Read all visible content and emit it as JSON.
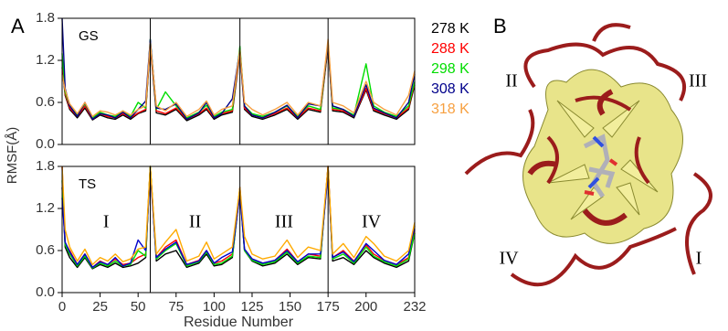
{
  "panel_labels": [
    "A",
    "B"
  ],
  "chart_data": [
    {
      "type": "line",
      "label": "GS",
      "ylabel": "RMSF(Å)",
      "x": [
        0,
        2,
        5,
        10,
        15,
        20,
        25,
        30,
        35,
        40,
        45,
        50,
        55,
        58,
        62,
        68,
        75,
        82,
        90,
        95,
        100,
        105,
        112,
        117,
        120,
        125,
        132,
        140,
        148,
        155,
        162,
        170,
        175,
        178,
        185,
        192,
        200,
        205,
        212,
        220,
        228,
        232
      ],
      "xlim": [
        0,
        232
      ],
      "ylim": [
        0,
        1.8
      ],
      "yticks": [
        {
          "value": 0,
          "label": "0.0"
        },
        0.6,
        1.2,
        1.8
      ],
      "boundaries": [
        58,
        117,
        175
      ],
      "series": [
        {
          "name": "278 K",
          "color": "#000000",
          "values": [
            1.1,
            0.7,
            0.5,
            0.38,
            0.52,
            0.35,
            0.42,
            0.38,
            0.36,
            0.42,
            0.36,
            0.44,
            0.48,
            1.4,
            0.45,
            0.42,
            0.5,
            0.34,
            0.42,
            0.5,
            0.36,
            0.42,
            0.46,
            1.3,
            0.5,
            0.4,
            0.36,
            0.42,
            0.5,
            0.36,
            0.5,
            0.46,
            1.4,
            0.48,
            0.46,
            0.38,
            0.78,
            0.48,
            0.42,
            0.36,
            0.5,
            0.85
          ]
        },
        {
          "name": "288 K",
          "color": "#ff0000",
          "values": [
            1.2,
            0.72,
            0.52,
            0.4,
            0.55,
            0.36,
            0.44,
            0.4,
            0.38,
            0.44,
            0.38,
            0.45,
            0.5,
            1.45,
            0.48,
            0.44,
            0.52,
            0.36,
            0.44,
            0.52,
            0.38,
            0.44,
            0.48,
            1.35,
            0.52,
            0.42,
            0.38,
            0.44,
            0.52,
            0.38,
            0.52,
            0.48,
            1.42,
            0.5,
            0.48,
            0.4,
            0.8,
            0.5,
            0.44,
            0.38,
            0.52,
            0.88
          ]
        },
        {
          "name": "298 K",
          "color": "#00dd00",
          "values": [
            1.3,
            0.75,
            0.55,
            0.42,
            0.58,
            0.38,
            0.46,
            0.42,
            0.4,
            0.48,
            0.4,
            0.6,
            0.52,
            1.5,
            0.5,
            0.75,
            0.55,
            0.38,
            0.46,
            0.56,
            0.4,
            0.46,
            0.5,
            1.4,
            0.55,
            0.44,
            0.4,
            0.46,
            0.55,
            0.4,
            0.55,
            0.5,
            1.45,
            0.52,
            0.5,
            0.42,
            1.15,
            0.55,
            0.46,
            0.4,
            0.55,
            0.9
          ]
        },
        {
          "name": "308 K",
          "color": "#00008b",
          "values": [
            1.8,
            0.8,
            0.55,
            0.4,
            0.6,
            0.36,
            0.44,
            0.42,
            0.38,
            0.46,
            0.38,
            0.5,
            0.62,
            1.5,
            0.52,
            0.5,
            0.58,
            0.36,
            0.45,
            0.6,
            0.38,
            0.44,
            0.65,
            1.35,
            0.55,
            0.42,
            0.38,
            0.46,
            0.56,
            0.38,
            0.58,
            0.55,
            1.45,
            0.55,
            0.5,
            0.4,
            0.85,
            0.52,
            0.45,
            0.38,
            0.6,
            1.0
          ]
        },
        {
          "name": "318 K",
          "color": "#f7a040",
          "values": [
            1.0,
            0.78,
            0.58,
            0.44,
            0.6,
            0.4,
            0.48,
            0.46,
            0.42,
            0.48,
            0.42,
            0.5,
            0.55,
            1.45,
            0.55,
            0.48,
            0.6,
            0.4,
            0.5,
            0.62,
            0.42,
            0.5,
            0.55,
            1.35,
            0.6,
            0.5,
            0.42,
            0.5,
            0.6,
            0.42,
            0.6,
            0.55,
            1.5,
            0.6,
            0.55,
            0.45,
            0.9,
            0.6,
            0.5,
            0.42,
            0.7,
            1.05
          ]
        }
      ]
    },
    {
      "type": "line",
      "label": "TS",
      "xlabel": "Residue Number",
      "x": [
        0,
        2,
        5,
        10,
        15,
        20,
        25,
        30,
        35,
        40,
        45,
        50,
        55,
        58,
        62,
        68,
        75,
        82,
        90,
        95,
        100,
        105,
        112,
        117,
        120,
        125,
        132,
        140,
        148,
        155,
        162,
        170,
        175,
        178,
        185,
        192,
        200,
        205,
        212,
        220,
        228,
        232
      ],
      "xlim": [
        0,
        232
      ],
      "ylim": [
        0,
        1.8
      ],
      "xticks": [
        0,
        25,
        50,
        75,
        100,
        125,
        150,
        175,
        200,
        232
      ],
      "yticks": [
        {
          "value": 0,
          "label": "0.0"
        },
        0.6,
        1.2,
        1.8
      ],
      "boundaries": [
        58,
        117,
        175
      ],
      "annotations": [
        "I",
        "II",
        "III",
        "IV"
      ],
      "series": [
        {
          "color": "#000000",
          "values": [
            1.5,
            0.65,
            0.5,
            0.36,
            0.5,
            0.34,
            0.4,
            0.36,
            0.42,
            0.36,
            0.38,
            0.42,
            0.5,
            1.8,
            0.45,
            0.55,
            0.6,
            0.36,
            0.42,
            0.55,
            0.38,
            0.4,
            0.5,
            1.45,
            0.6,
            0.45,
            0.38,
            0.42,
            0.55,
            0.4,
            0.5,
            0.48,
            1.8,
            0.45,
            0.5,
            0.4,
            0.6,
            0.5,
            0.42,
            0.36,
            0.45,
            0.85
          ]
        },
        {
          "color": "#ff0000",
          "values": [
            1.8,
            0.7,
            0.6,
            0.4,
            0.55,
            0.36,
            0.45,
            0.4,
            0.48,
            0.4,
            0.42,
            0.5,
            0.55,
            1.8,
            0.5,
            0.65,
            0.75,
            0.4,
            0.46,
            0.6,
            0.42,
            0.45,
            0.55,
            1.5,
            0.62,
            0.48,
            0.42,
            0.46,
            0.62,
            0.44,
            0.55,
            0.52,
            1.8,
            0.5,
            0.6,
            0.45,
            0.68,
            0.55,
            0.46,
            0.4,
            0.5,
            0.9
          ]
        },
        {
          "color": "#00dd00",
          "values": [
            1.6,
            0.68,
            0.55,
            0.38,
            0.52,
            0.35,
            0.42,
            0.38,
            0.45,
            0.38,
            0.4,
            0.6,
            0.52,
            1.8,
            0.48,
            0.6,
            0.7,
            0.38,
            0.44,
            0.58,
            0.4,
            0.42,
            0.52,
            1.45,
            0.6,
            0.46,
            0.4,
            0.44,
            0.58,
            0.42,
            0.52,
            0.5,
            1.75,
            0.48,
            0.55,
            0.42,
            0.65,
            0.52,
            0.44,
            0.38,
            0.48,
            0.85
          ]
        },
        {
          "color": "#0000cc",
          "values": [
            1.35,
            0.72,
            0.58,
            0.4,
            0.55,
            0.36,
            0.44,
            0.4,
            0.5,
            0.38,
            0.42,
            0.75,
            0.6,
            1.7,
            0.5,
            0.62,
            0.72,
            0.4,
            0.45,
            0.6,
            0.42,
            0.5,
            0.58,
            1.4,
            0.62,
            0.48,
            0.42,
            0.46,
            0.6,
            0.44,
            0.55,
            0.55,
            1.7,
            0.5,
            0.58,
            0.44,
            0.7,
            0.6,
            0.46,
            0.4,
            0.55,
            0.95
          ]
        },
        {
          "color": "#ffaa00",
          "values": [
            1.8,
            0.9,
            0.65,
            0.45,
            0.62,
            0.4,
            0.5,
            0.45,
            0.55,
            0.44,
            0.48,
            0.62,
            0.65,
            1.8,
            0.55,
            0.72,
            0.9,
            0.45,
            0.52,
            0.72,
            0.48,
            0.55,
            0.65,
            1.5,
            0.8,
            0.55,
            0.48,
            0.52,
            0.75,
            0.5,
            0.65,
            0.6,
            1.8,
            0.55,
            0.7,
            0.5,
            0.8,
            0.7,
            0.52,
            0.45,
            0.6,
            1.0
          ]
        }
      ]
    }
  ],
  "structure": {
    "labels": [
      "II",
      "III",
      "IV",
      "I"
    ]
  }
}
